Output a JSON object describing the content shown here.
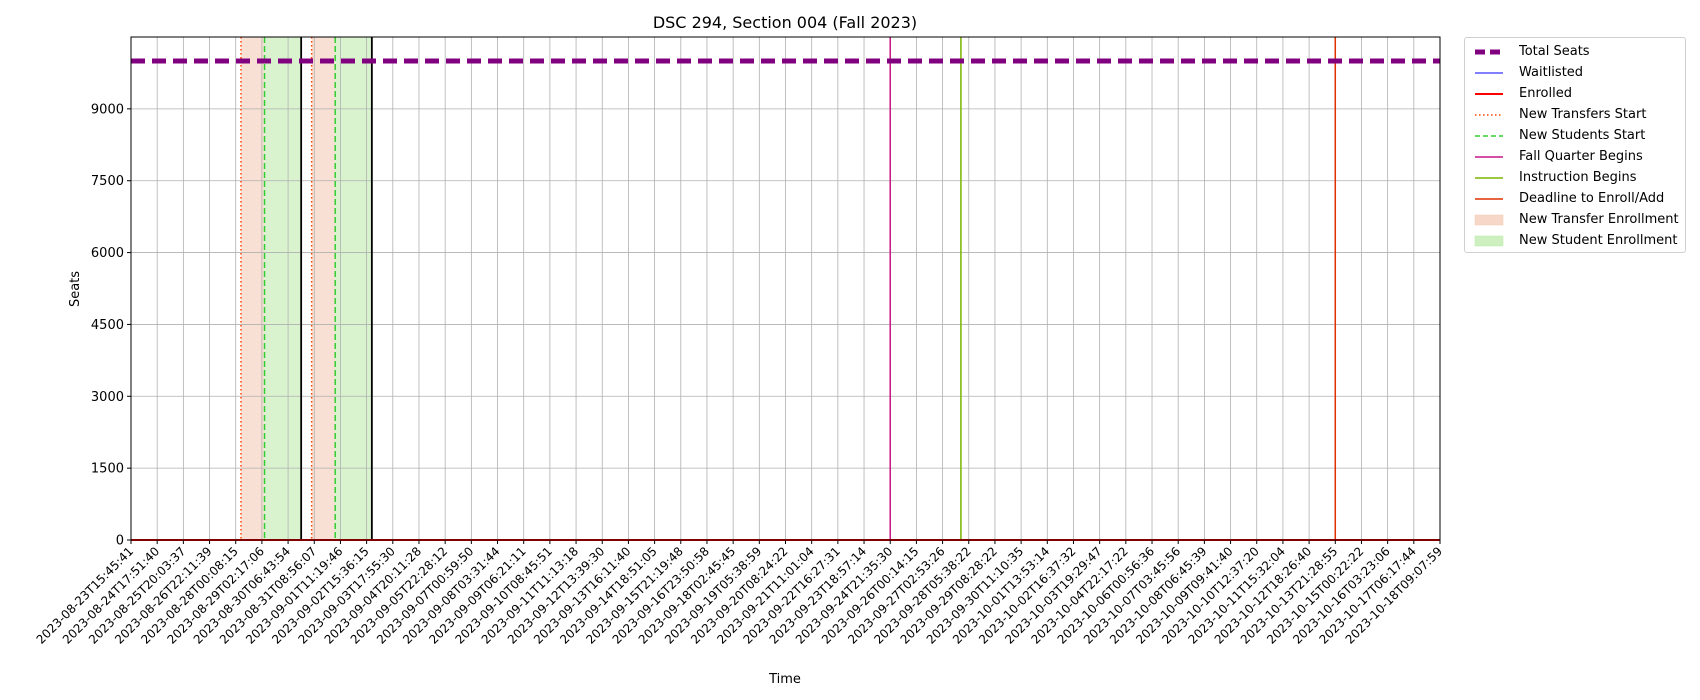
{
  "chart_data": {
    "type": "line",
    "title": "DSC 294, Section 004 (Fall 2023)",
    "xlabel": "Time",
    "ylabel": "Seats",
    "yticks": [
      0,
      1500,
      3000,
      4500,
      6000,
      7500,
      9000
    ],
    "ylim": [
      0,
      10500
    ],
    "x_tick_labels": [
      "2023-08-23T15:45:41",
      "2023-08-24T17:51:40",
      "2023-08-25T20:03:37",
      "2023-08-26T22:11:39",
      "2023-08-28T00:08:15",
      "2023-08-29T02:17:06",
      "2023-08-30T06:43:54",
      "2023-08-31T08:56:07",
      "2023-09-01T11:19:46",
      "2023-09-02T15:36:15",
      "2023-09-03T17:55:30",
      "2023-09-04T20:11:28",
      "2023-09-05T22:28:12",
      "2023-09-07T00:59:50",
      "2023-09-08T03:31:44",
      "2023-09-09T06:21:11",
      "2023-09-10T08:45:51",
      "2023-09-11T11:13:18",
      "2023-09-12T13:39:30",
      "2023-09-13T16:11:40",
      "2023-09-14T18:51:05",
      "2023-09-15T21:19:48",
      "2023-09-16T23:50:58",
      "2023-09-18T02:45:45",
      "2023-09-19T05:38:59",
      "2023-09-20T08:24:22",
      "2023-09-21T11:01:04",
      "2023-09-22T16:27:31",
      "2023-09-23T18:57:14",
      "2023-09-24T21:35:30",
      "2023-09-26T00:14:15",
      "2023-09-27T02:53:26",
      "2023-09-28T05:38:22",
      "2023-09-29T08:28:22",
      "2023-09-30T11:10:35",
      "2023-10-01T13:53:14",
      "2023-10-02T16:37:32",
      "2023-10-03T19:29:47",
      "2023-10-04T22:17:22",
      "2023-10-06T00:56:36",
      "2023-10-07T03:45:56",
      "2023-10-08T06:45:39",
      "2023-10-09T09:41:40",
      "2023-10-10T12:37:20",
      "2023-10-11T15:32:04",
      "2023-10-12T18:26:40",
      "2023-10-13T21:28:55",
      "2023-10-15T00:22:22",
      "2023-10-16T03:23:06",
      "2023-10-17T06:17:44",
      "2023-10-18T09:07:59"
    ],
    "series": [
      {
        "name": "Total Seats",
        "color": "#800080",
        "style": "dashed",
        "value": 10000
      },
      {
        "name": "Waitlisted",
        "color": "#0000ff",
        "style": "solid",
        "value": 0
      },
      {
        "name": "Enrolled",
        "color": "#ff0000",
        "style": "solid",
        "value": 0
      }
    ],
    "vertical_lines": [
      {
        "name": "New Transfers Start",
        "color": "#ff4500",
        "style": "dotted",
        "x_tick_index": 4.2
      },
      {
        "name": "New Students Start",
        "color": "#32cd32",
        "style": "dashed",
        "x_tick_index": 5.1
      },
      {
        "name": "Fall Quarter Begins",
        "color": "#c71585",
        "style": "solid",
        "x_tick_index": 29.0
      },
      {
        "name": "Instruction Begins",
        "color": "#7cb500",
        "style": "solid",
        "x_tick_index": 31.7
      },
      {
        "name": "Deadline to Enroll/Add",
        "color": "#e03000",
        "style": "solid",
        "x_tick_index": 46.0
      }
    ],
    "extra_vertical_lines": [
      {
        "color": "#ff4500",
        "style": "dotted",
        "x_tick_index": 6.9
      },
      {
        "color": "#32cd32",
        "style": "dashed",
        "x_tick_index": 7.8
      },
      {
        "color": "#000000",
        "style": "solid",
        "x_tick_index": 6.5
      },
      {
        "color": "#000000",
        "style": "solid",
        "x_tick_index": 9.2
      }
    ],
    "shaded_regions": [
      {
        "name": "New Transfer Enrollment",
        "color": "#f4c7b0",
        "x_tick_range": [
          4.2,
          5.1
        ]
      },
      {
        "name": "New Student Enrollment",
        "color": "#b9eaa6",
        "x_tick_range": [
          5.1,
          6.5
        ]
      },
      {
        "name": "New Transfer Enrollment",
        "color": "#f4c7b0",
        "x_tick_range": [
          6.9,
          7.8
        ]
      },
      {
        "name": "New Student Enrollment",
        "color": "#b9eaa6",
        "x_tick_range": [
          7.8,
          9.2
        ]
      }
    ],
    "grid": true,
    "legend_position": "outside-top-right",
    "legend": [
      {
        "label": "Total Seats",
        "kind": "line",
        "color": "#800080",
        "style": "dashed",
        "width": 5
      },
      {
        "label": "Waitlisted",
        "kind": "line",
        "color": "#0000ff",
        "style": "solid",
        "width": 1
      },
      {
        "label": "Enrolled",
        "kind": "line",
        "color": "#ff0000",
        "style": "solid",
        "width": 2
      },
      {
        "label": "New Transfers Start",
        "kind": "line",
        "color": "#ff4500",
        "style": "dotted",
        "width": 1.5
      },
      {
        "label": "New Students Start",
        "kind": "line",
        "color": "#32cd32",
        "style": "dashed",
        "width": 1.5
      },
      {
        "label": "Fall Quarter Begins",
        "kind": "line",
        "color": "#c71585",
        "style": "solid",
        "width": 1.5
      },
      {
        "label": "Instruction Begins",
        "kind": "line",
        "color": "#7cb500",
        "style": "solid",
        "width": 1.5
      },
      {
        "label": "Deadline to Enroll/Add",
        "kind": "line",
        "color": "#e03000",
        "style": "solid",
        "width": 1.5
      },
      {
        "label": "New Transfer Enrollment",
        "kind": "patch",
        "color": "#f4c7b0"
      },
      {
        "label": "New Student Enrollment",
        "kind": "patch",
        "color": "#b9eaa6"
      }
    ]
  }
}
